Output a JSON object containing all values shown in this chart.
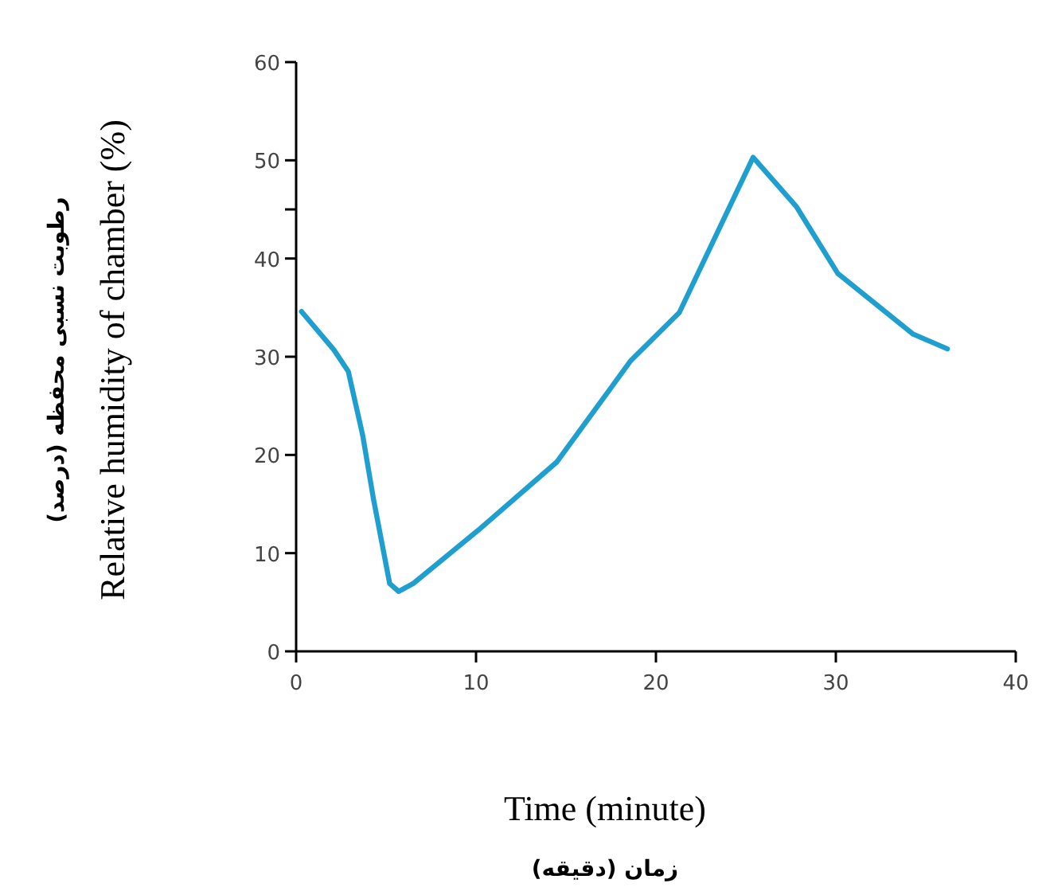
{
  "chart_data": {
    "type": "line",
    "xlabel": "Time (minute)",
    "ylabel": "Relative humidity of chamber (%)",
    "annotations": [
      "زمان (دقیقه)",
      "رطوبت نسبی محفظه (درصد)"
    ],
    "x": [
      0.3,
      2.1,
      2.9,
      3.7,
      4.3,
      5.2,
      5.7,
      6.5,
      10.1,
      14.5,
      18.6,
      21.3,
      25.4,
      27.8,
      30.1,
      34.3,
      36.2
    ],
    "series": [
      {
        "color": "#1f9fd0",
        "values": [
          34.6,
          30.7,
          28.5,
          22.0,
          15.5,
          6.9,
          6.1,
          6.9,
          12.3,
          19.3,
          29.6,
          34.5,
          50.3,
          45.3,
          38.5,
          32.3,
          30.8
        ]
      }
    ],
    "xlim": [
      0,
      40
    ],
    "xticks": [
      0,
      10,
      20,
      30,
      40
    ],
    "ylim": [
      0,
      60
    ],
    "yticks": [
      0,
      10,
      20,
      30,
      40,
      {
        "value": 45,
        "label": null
      },
      50,
      60
    ],
    "line_style": "solid"
  }
}
